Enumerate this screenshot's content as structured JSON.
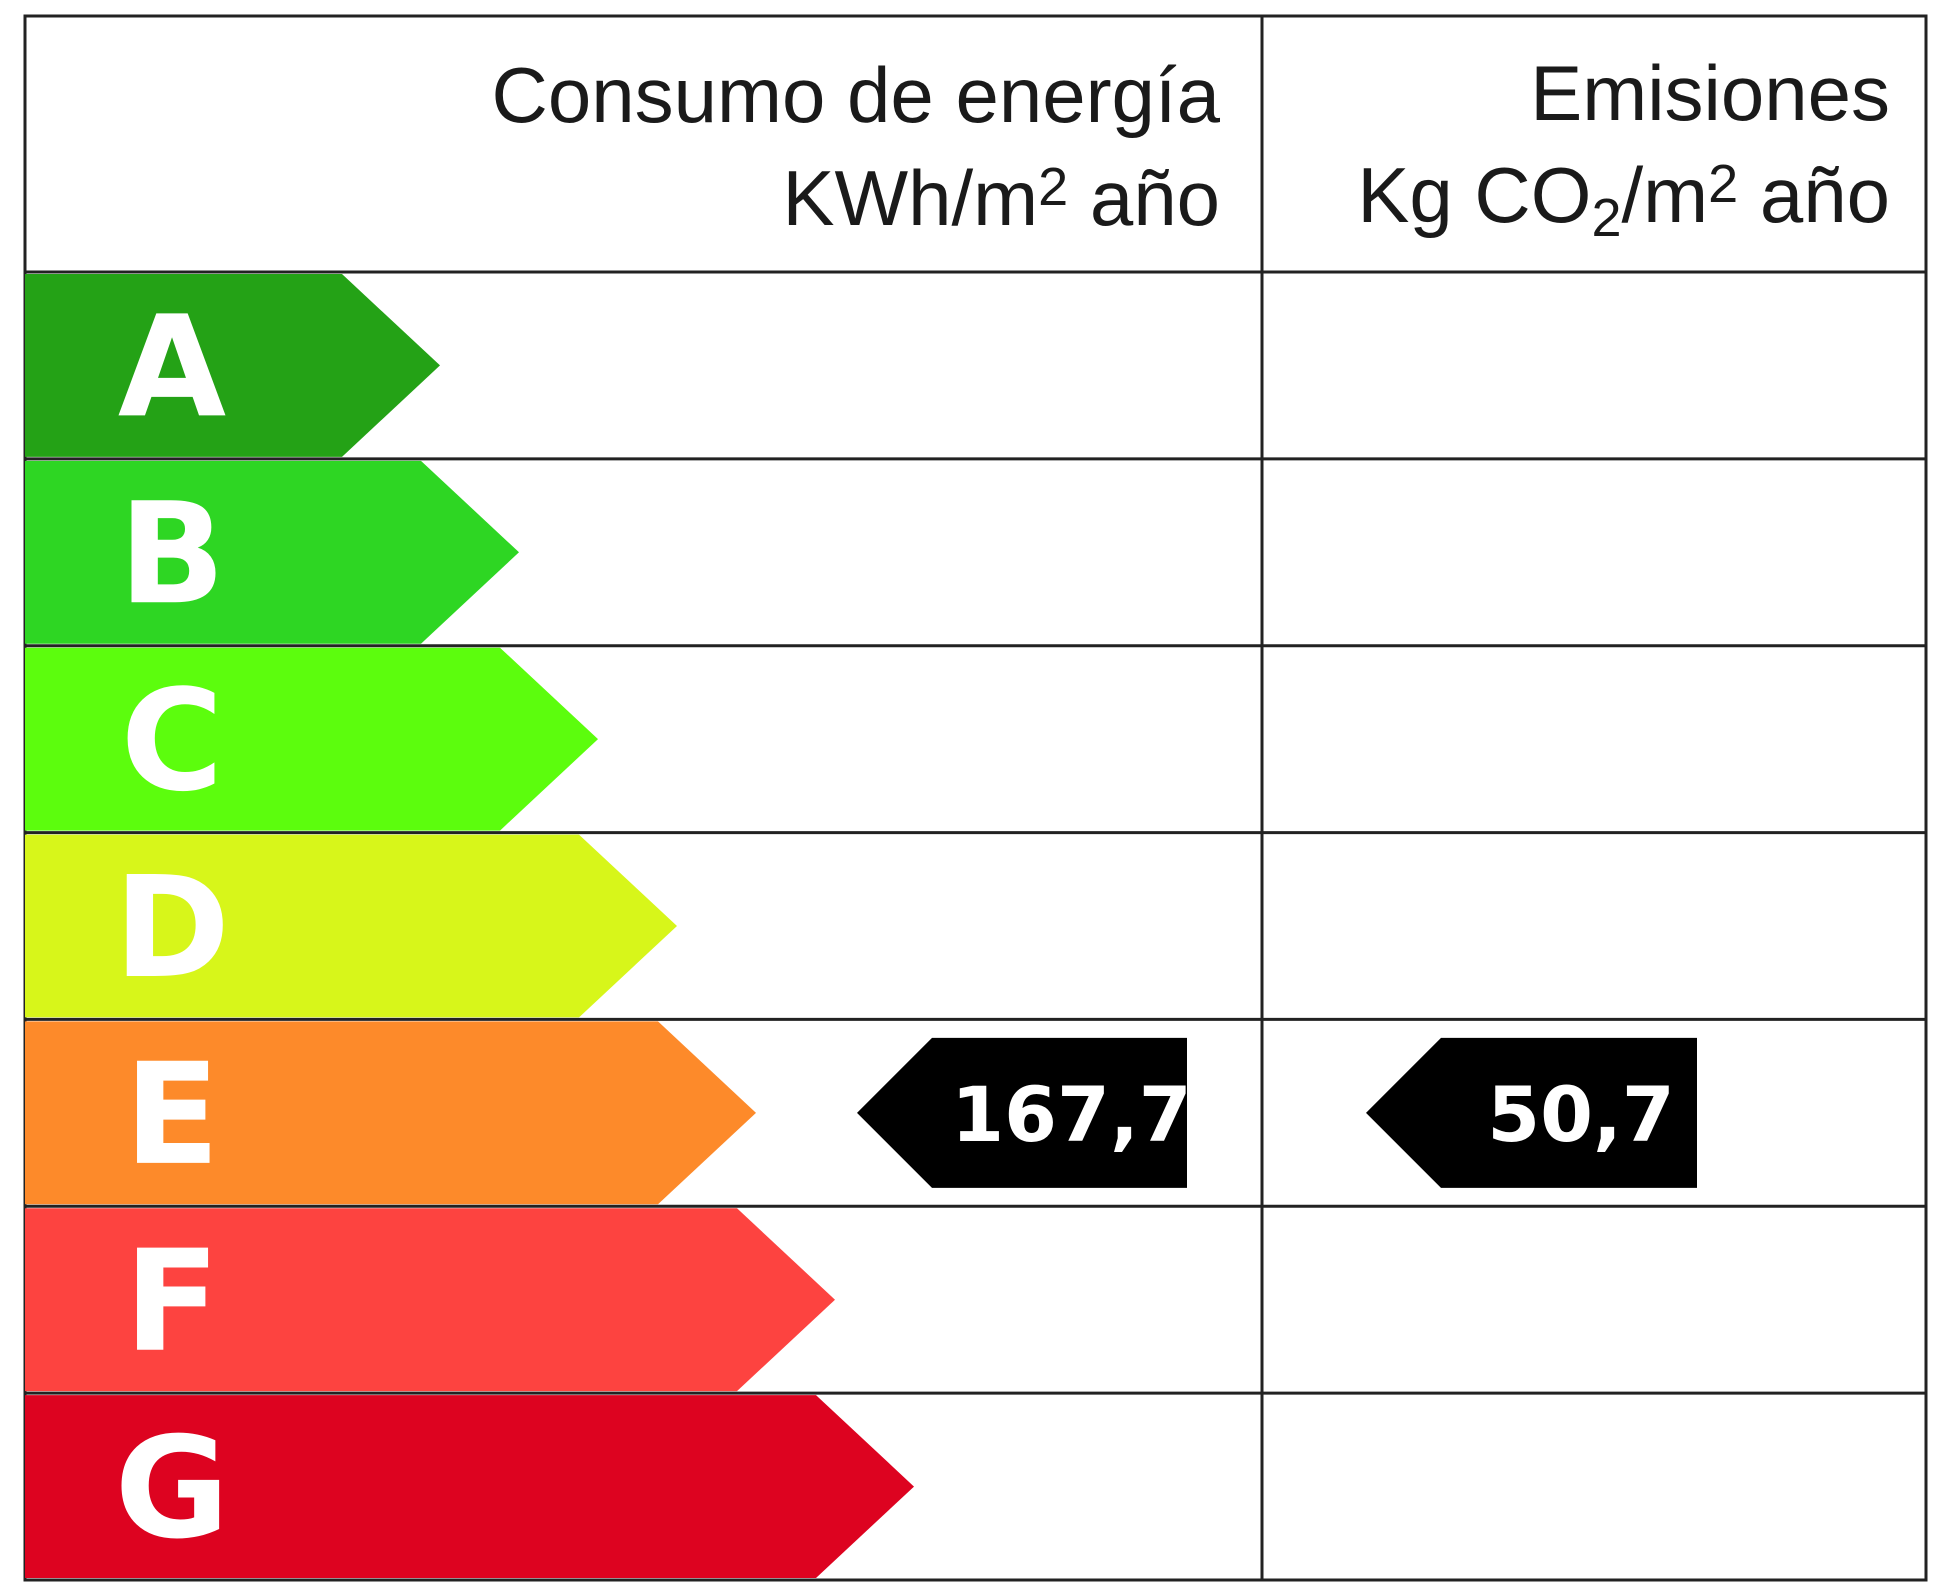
{
  "header": {
    "energy_title": "Consumo de energía",
    "energy_unit": {
      "base": "KWh/m",
      "sup": "2",
      "tail": " año"
    },
    "emissions_title": "Emisiones",
    "emissions_unit": {
      "base": "Kg CO",
      "sub": "2",
      "mid": "/m",
      "sup": "2",
      "tail": " año"
    }
  },
  "classes": [
    {
      "letter": "A",
      "color": "#24a216"
    },
    {
      "letter": "B",
      "color": "#2ed623"
    },
    {
      "letter": "C",
      "color": "#5cfd0d"
    },
    {
      "letter": "D",
      "color": "#d7f61a"
    },
    {
      "letter": "E",
      "color": "#fd8a2a"
    },
    {
      "letter": "F",
      "color": "#fd4340"
    },
    {
      "letter": "G",
      "color": "#dd0320"
    }
  ],
  "rating": {
    "energy": {
      "class": "E",
      "value": "167,7"
    },
    "emissions": {
      "class": "E",
      "value": "50,7"
    }
  }
}
